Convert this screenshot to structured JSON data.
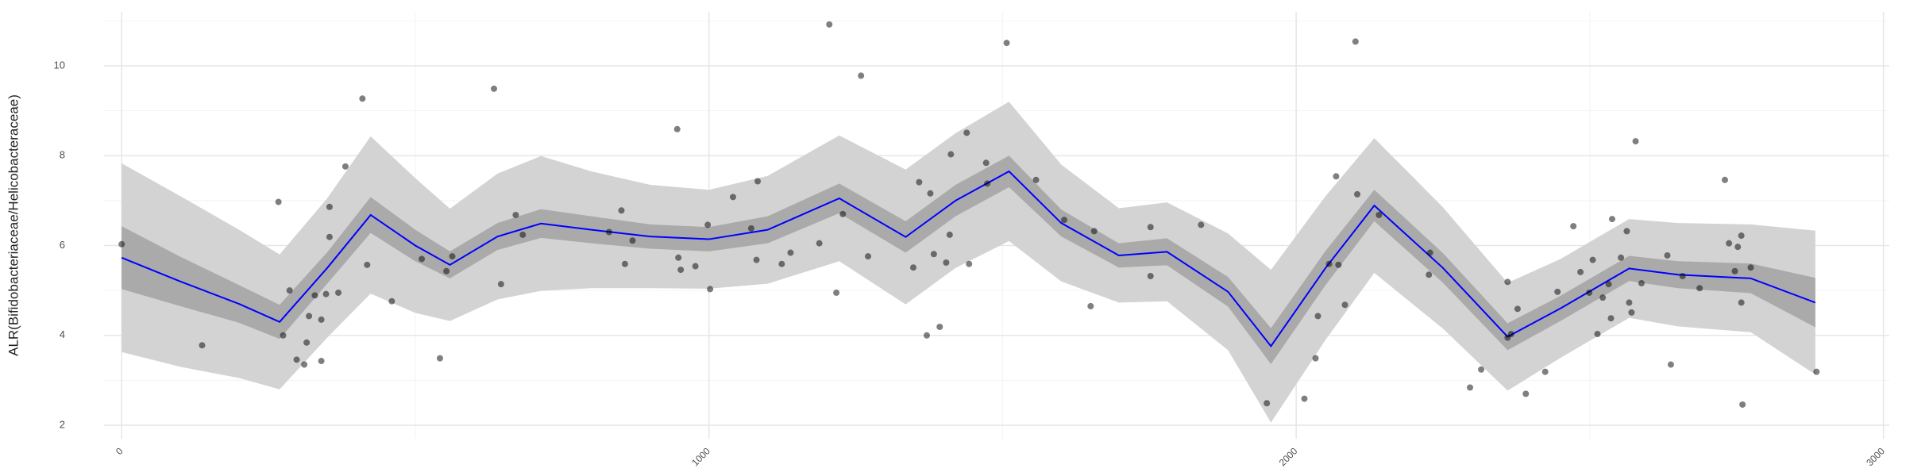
{
  "chart_data": {
    "type": "scatter",
    "ylabel": "ALR(Bifidobacteriaceae/Helicobacteraceae)",
    "xlim": [
      -30,
      3010
    ],
    "ylim": [
      1.7,
      11.2
    ],
    "xticks": [
      0,
      1000,
      2000,
      3000
    ],
    "yticks": [
      2,
      4,
      6,
      8,
      10
    ],
    "minor_xticks": [
      500,
      1500,
      2500
    ],
    "minor_yticks": [
      3,
      5,
      7,
      9,
      11
    ],
    "grid": true,
    "color": "#000000",
    "x": [
      0,
      137,
      267,
      275,
      286,
      298,
      315,
      311,
      319,
      329,
      340,
      340,
      348,
      354,
      354,
      369,
      381,
      410,
      418,
      460,
      511,
      542,
      553,
      563,
      634,
      646,
      671,
      683,
      830,
      851,
      857,
      870,
      946,
      948,
      952,
      977,
      998,
      1002,
      1041,
      1072,
      1081,
      1083,
      1124,
      1139,
      1188,
      1205,
      1217,
      1228,
      1259,
      1271,
      1348,
      1358,
      1371,
      1377,
      1383,
      1393,
      1404,
      1410,
      1412,
      1439,
      1443,
      1472,
      1474,
      1507,
      1557,
      1605,
      1650,
      1656,
      1752,
      1752,
      1838,
      1950,
      2014,
      2033,
      2037,
      2056,
      2068,
      2072,
      2083,
      2101,
      2104,
      2141,
      2228,
      2226,
      2296,
      2315,
      2360,
      2360,
      2366,
      2377,
      2391,
      2424,
      2445,
      2472,
      2484,
      2499,
      2505,
      2513,
      2522,
      2532,
      2536,
      2538,
      2553,
      2563,
      2567,
      2571,
      2578,
      2588,
      2632,
      2638,
      2658,
      2687,
      2737,
      2730,
      2747,
      2752,
      2758,
      2758,
      2760,
      2774,
      2886
    ],
    "values": [
      6.03,
      3.78,
      6.97,
      4.0,
      5.0,
      3.46,
      3.84,
      3.35,
      4.43,
      4.89,
      4.35,
      3.43,
      4.92,
      6.19,
      6.86,
      4.95,
      7.76,
      9.27,
      5.57,
      4.76,
      5.7,
      3.49,
      5.43,
      5.76,
      9.49,
      5.14,
      6.68,
      6.24,
      6.3,
      6.78,
      5.59,
      6.11,
      8.59,
      5.73,
      5.46,
      5.54,
      6.46,
      5.03,
      7.08,
      6.38,
      5.68,
      7.43,
      5.59,
      5.84,
      6.05,
      10.92,
      4.95,
      6.7,
      9.78,
      5.76,
      5.51,
      7.41,
      4.0,
      7.16,
      5.81,
      4.19,
      5.62,
      6.24,
      8.03,
      8.51,
      5.59,
      7.84,
      7.38,
      10.51,
      7.46,
      6.57,
      4.65,
      6.32,
      6.41,
      5.32,
      6.46,
      2.49,
      2.59,
      3.49,
      4.43,
      5.59,
      7.54,
      5.57,
      4.68,
      10.54,
      7.14,
      6.68,
      5.84,
      5.35,
      2.84,
      3.24,
      5.19,
      3.95,
      4.03,
      4.59,
      2.7,
      3.19,
      4.97,
      6.43,
      5.41,
      4.95,
      5.68,
      4.03,
      4.84,
      5.14,
      4.38,
      6.59,
      5.73,
      6.32,
      4.73,
      4.51,
      8.32,
      5.16,
      5.78,
      3.35,
      5.32,
      5.05,
      6.05,
      7.46,
      5.43,
      5.97,
      6.22,
      4.73,
      2.46,
      5.51,
      3.19
    ],
    "smooth": {
      "color": "#0000ff",
      "x": [
        0,
        100,
        200,
        269,
        350,
        424,
        500,
        559,
        640,
        714,
        800,
        900,
        1000,
        1100,
        1222,
        1335,
        1420,
        1511,
        1600,
        1698,
        1780,
        1884,
        1957,
        2050,
        2133,
        2250,
        2360,
        2450,
        2567,
        2650,
        2774,
        2884
      ],
      "values": [
        5.73,
        5.2,
        4.7,
        4.3,
        5.5,
        6.68,
        6.0,
        5.57,
        6.2,
        6.49,
        6.35,
        6.2,
        6.14,
        6.35,
        7.05,
        6.19,
        7.0,
        7.65,
        6.5,
        5.78,
        5.86,
        4.97,
        3.76,
        5.5,
        6.89,
        5.5,
        3.97,
        4.6,
        5.49,
        5.35,
        5.27,
        4.73
      ]
    },
    "outer_band": {
      "color": "#d3d3d3",
      "lower": [
        3.63,
        3.3,
        3.05,
        2.8,
        3.95,
        4.93,
        4.5,
        4.32,
        4.8,
        4.99,
        5.05,
        5.05,
        5.04,
        5.15,
        5.65,
        4.69,
        5.5,
        6.1,
        5.2,
        4.73,
        4.76,
        3.67,
        2.06,
        3.9,
        5.39,
        4.15,
        2.77,
        3.5,
        4.39,
        4.2,
        4.07,
        3.13
      ],
      "upper": [
        7.83,
        7.1,
        6.35,
        5.8,
        7.05,
        8.43,
        7.5,
        6.82,
        7.6,
        7.99,
        7.65,
        7.35,
        7.24,
        7.55,
        8.45,
        7.69,
        8.5,
        9.2,
        7.8,
        6.83,
        6.96,
        6.27,
        5.46,
        7.1,
        8.39,
        6.85,
        5.17,
        5.7,
        6.59,
        6.5,
        6.47,
        6.33
      ]
    },
    "inner_band": {
      "color": "#aaaaaa",
      "lower": [
        5.03,
        4.65,
        4.28,
        3.92,
        5.15,
        6.28,
        5.65,
        5.27,
        5.9,
        6.17,
        6.05,
        5.93,
        5.87,
        6.05,
        6.72,
        5.84,
        6.65,
        7.3,
        6.2,
        5.51,
        5.56,
        4.64,
        3.36,
        5.12,
        6.54,
        5.17,
        3.67,
        4.32,
        5.21,
        5.05,
        4.94,
        4.18
      ],
      "upper": [
        6.43,
        5.75,
        5.12,
        4.68,
        5.85,
        7.08,
        6.35,
        5.87,
        6.5,
        6.81,
        6.65,
        6.47,
        6.41,
        6.65,
        7.38,
        6.54,
        7.35,
        8.0,
        6.8,
        6.05,
        6.16,
        5.3,
        4.16,
        5.88,
        7.24,
        5.83,
        4.27,
        4.88,
        5.77,
        5.65,
        5.6,
        5.28
      ]
    }
  }
}
